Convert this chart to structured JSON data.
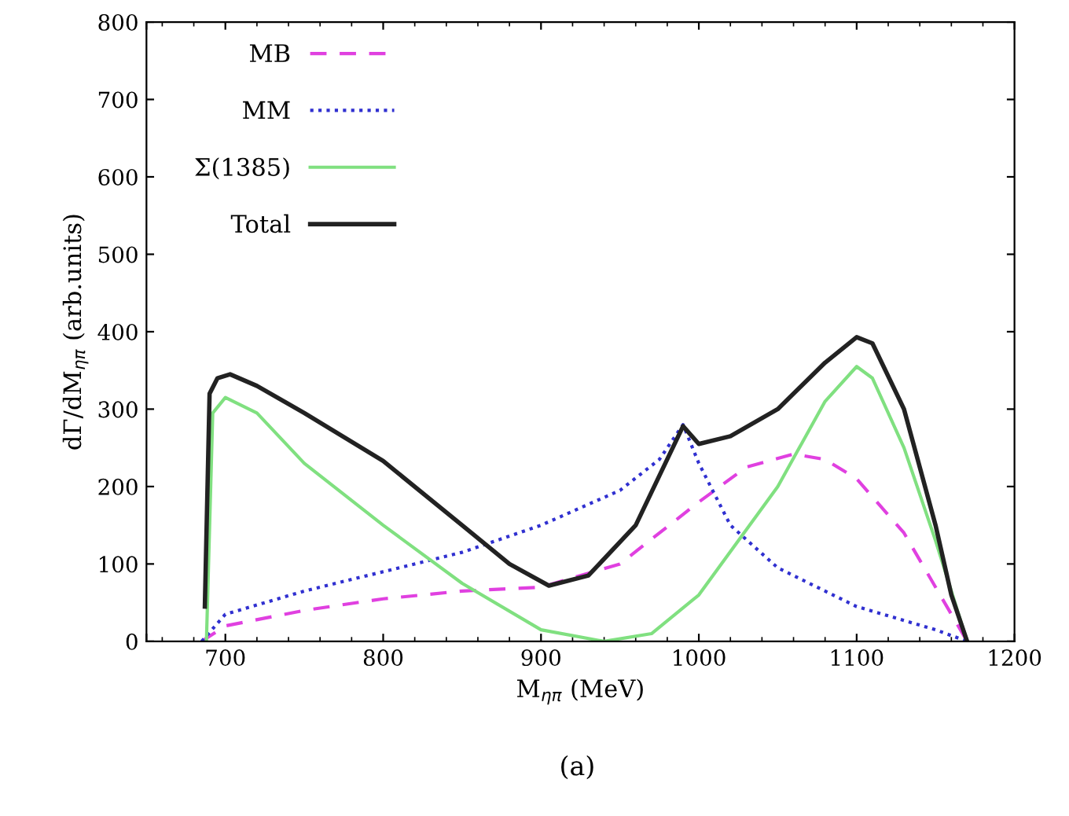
{
  "chart_data": {
    "type": "line",
    "xlabel": "M$_{ηπ}$ (MeV)",
    "ylabel": "dΓ/dM$_{ηπ}$ (arb.units)",
    "annotations": [
      "(a)"
    ],
    "xlim": [
      650,
      1200
    ],
    "ylim": [
      0,
      800
    ],
    "xticks": [
      {
        "value": 650,
        "label": null
      },
      700,
      800,
      900,
      1000,
      1100,
      1200
    ],
    "yticks": [
      0,
      100,
      200,
      300,
      400,
      500,
      600,
      700,
      800
    ],
    "grid": false,
    "legend": "top left",
    "series": [
      {
        "name": "MB",
        "color": "#e040e0",
        "line_style": "dashed",
        "x": [
          685,
          700,
          750,
          800,
          850,
          900,
          950,
          1000,
          1030,
          1060,
          1080,
          1100,
          1130,
          1150,
          1170
        ],
        "values": [
          0,
          20,
          40,
          55,
          65,
          70,
          100,
          180,
          225,
          242,
          235,
          210,
          140,
          70,
          0
        ]
      },
      {
        "name": "MM",
        "color": "#3030d0",
        "line_style": "dotted",
        "x": [
          685,
          700,
          750,
          800,
          850,
          900,
          950,
          975,
          990,
          1000,
          1020,
          1050,
          1100,
          1150,
          1170
        ],
        "values": [
          0,
          35,
          65,
          90,
          115,
          150,
          195,
          235,
          280,
          230,
          150,
          95,
          45,
          15,
          0
        ]
      },
      {
        "name": "Σ(1385)",
        "color": "#80e080",
        "line_style": "solid",
        "x": [
          688,
          692,
          700,
          720,
          750,
          800,
          850,
          900,
          940,
          970,
          1000,
          1050,
          1080,
          1100,
          1110,
          1130,
          1150,
          1170
        ],
        "values": [
          0,
          295,
          315,
          295,
          230,
          150,
          75,
          15,
          0,
          10,
          60,
          200,
          310,
          355,
          340,
          250,
          130,
          0
        ]
      },
      {
        "name": "Total",
        "color": "#222222",
        "line_style": "solid",
        "x": [
          687,
          690,
          695,
          703,
          720,
          750,
          800,
          850,
          880,
          905,
          930,
          960,
          990,
          1000,
          1020,
          1050,
          1080,
          1100,
          1110,
          1130,
          1150,
          1160,
          1170
        ],
        "values": [
          45,
          320,
          340,
          345,
          330,
          295,
          233,
          150,
          100,
          72,
          85,
          150,
          278,
          255,
          265,
          300,
          360,
          393,
          385,
          300,
          150,
          60,
          0
        ]
      }
    ]
  }
}
